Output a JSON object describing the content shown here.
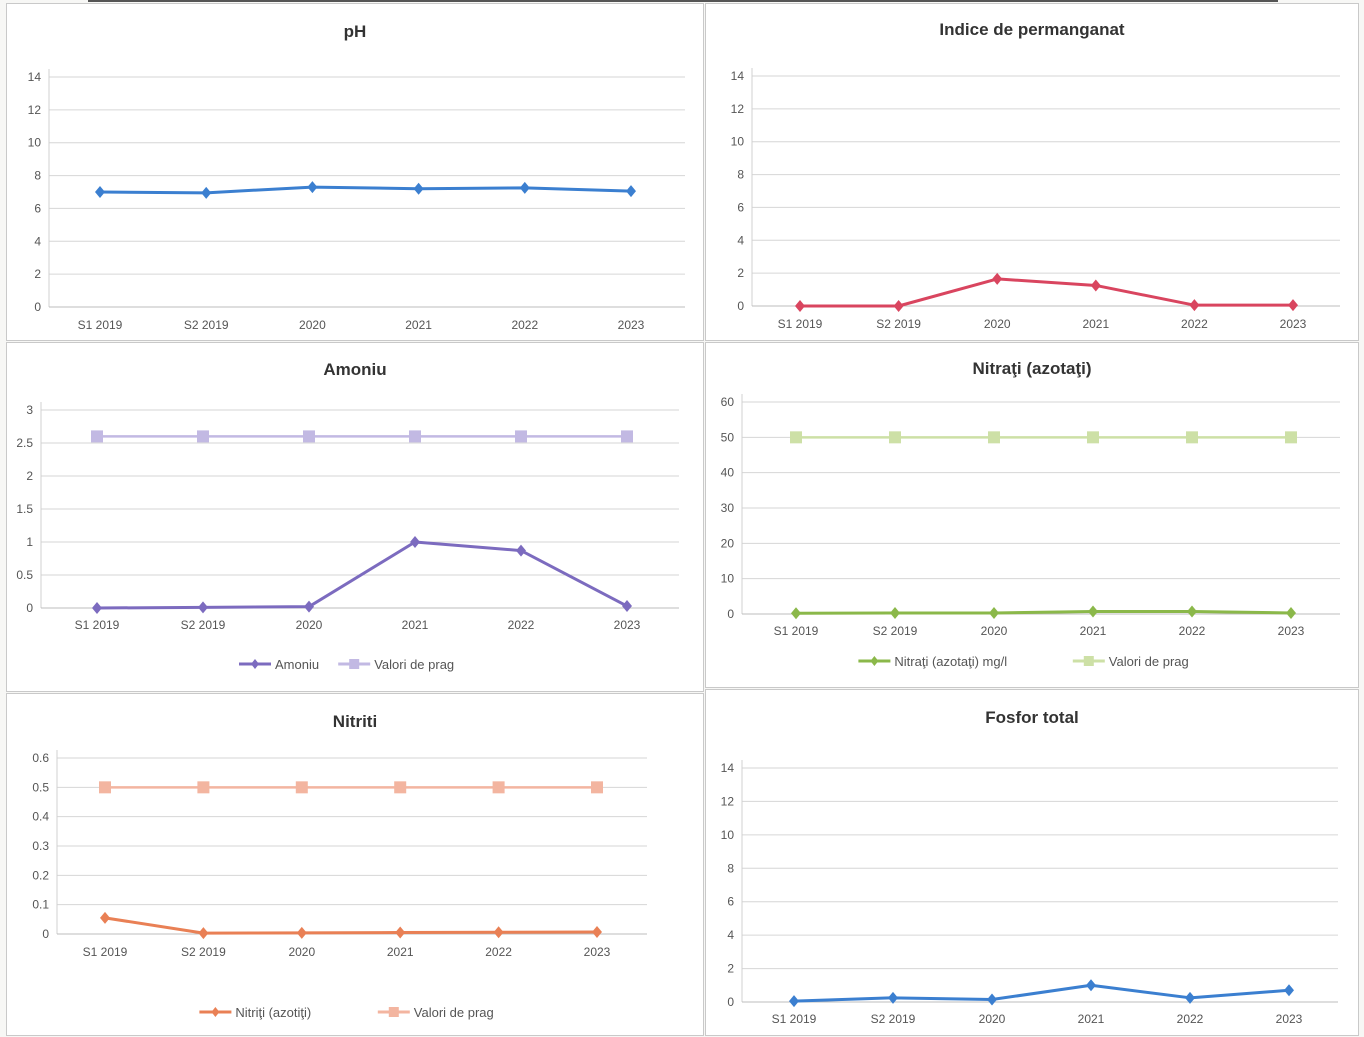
{
  "chart_data": [
    {
      "type": "line",
      "title": "pH",
      "categories": [
        "S1 2019",
        "S2 2019",
        "2020",
        "2021",
        "2022",
        "2023"
      ],
      "ylim": [
        0,
        14
      ],
      "yticks": [
        "0",
        "2",
        "4",
        "6",
        "8",
        "10",
        "12",
        "14"
      ],
      "grid": true,
      "legend": "none",
      "series": [
        {
          "name": "",
          "values": [
            7.0,
            6.95,
            7.3,
            7.2,
            7.25,
            7.05
          ],
          "color": "#3b7fd0",
          "marker": "diamond"
        }
      ]
    },
    {
      "type": "line",
      "title": "Indice de permanganat",
      "categories": [
        "S1 2019",
        "S2 2019",
        "2020",
        "2021",
        "2022",
        "2023"
      ],
      "ylim": [
        0,
        14
      ],
      "yticks": [
        "0",
        "2",
        "4",
        "6",
        "8",
        "10",
        "12",
        "14"
      ],
      "grid": true,
      "legend": "none",
      "series": [
        {
          "name": "",
          "values": [
            0.0,
            0.0,
            1.65,
            1.25,
            0.05,
            0.05
          ],
          "color": "#d9455f",
          "marker": "diamond"
        }
      ]
    },
    {
      "type": "line",
      "title": "Amoniu",
      "categories": [
        "S1 2019",
        "S2 2019",
        "2020",
        "2021",
        "2022",
        "2023"
      ],
      "ylim": [
        0,
        3
      ],
      "yticks": [
        "0",
        "0.5",
        "1",
        "1.5",
        "2",
        "2.5",
        "3"
      ],
      "grid": true,
      "legend": "bottom",
      "series": [
        {
          "name": "Amoniu",
          "values": [
            0.0,
            0.01,
            0.02,
            1.0,
            0.87,
            0.03
          ],
          "color": "#7c6bbf",
          "marker": "diamond"
        },
        {
          "name": "Valori de prag",
          "values": [
            2.6,
            2.6,
            2.6,
            2.6,
            2.6,
            2.6
          ],
          "color": "#c2b9e3",
          "marker": "square"
        }
      ]
    },
    {
      "type": "line",
      "title": "Nitraţi (azotaţi)",
      "categories": [
        "S1 2019",
        "S2 2019",
        "2020",
        "2021",
        "2022",
        "2023"
      ],
      "ylim": [
        0,
        60
      ],
      "yticks": [
        "0",
        "10",
        "20",
        "30",
        "40",
        "50",
        "60"
      ],
      "grid": true,
      "legend": "bottom",
      "series": [
        {
          "name": "Nitraţi (azotaţi) mg/l",
          "values": [
            0.2,
            0.3,
            0.3,
            0.7,
            0.7,
            0.3
          ],
          "color": "#8bb84a",
          "marker": "diamond"
        },
        {
          "name": "Valori de prag",
          "values": [
            50,
            50,
            50,
            50,
            50,
            50
          ],
          "color": "#cde0a6",
          "marker": "square"
        }
      ]
    },
    {
      "type": "line",
      "title": "Nitriti",
      "categories": [
        "S1 2019",
        "S2 2019",
        "2020",
        "2021",
        "2022",
        "2023"
      ],
      "ylim": [
        0,
        0.6
      ],
      "yticks": [
        "0",
        "0.1",
        "0.2",
        "0.3",
        "0.4",
        "0.5",
        "0.6"
      ],
      "grid": true,
      "legend": "bottom",
      "series": [
        {
          "name": "Nitriţi (azotiţi)",
          "values": [
            0.055,
            0.003,
            0.004,
            0.005,
            0.006,
            0.007
          ],
          "color": "#e98055",
          "marker": "diamond"
        },
        {
          "name": "Valori de prag",
          "values": [
            0.5,
            0.5,
            0.5,
            0.5,
            0.5,
            0.5
          ],
          "color": "#f3b5a0",
          "marker": "square"
        }
      ]
    },
    {
      "type": "line",
      "title": "Fosfor total",
      "categories": [
        "S1 2019",
        "S2 2019",
        "2020",
        "2021",
        "2022",
        "2023"
      ],
      "ylim": [
        0,
        14
      ],
      "yticks": [
        "0",
        "2",
        "4",
        "6",
        "8",
        "10",
        "12",
        "14"
      ],
      "grid": true,
      "legend": "none",
      "series": [
        {
          "name": "",
          "values": [
            0.05,
            0.25,
            0.15,
            1.0,
            0.25,
            0.7
          ],
          "color": "#3b7fd0",
          "marker": "diamond"
        }
      ]
    }
  ]
}
